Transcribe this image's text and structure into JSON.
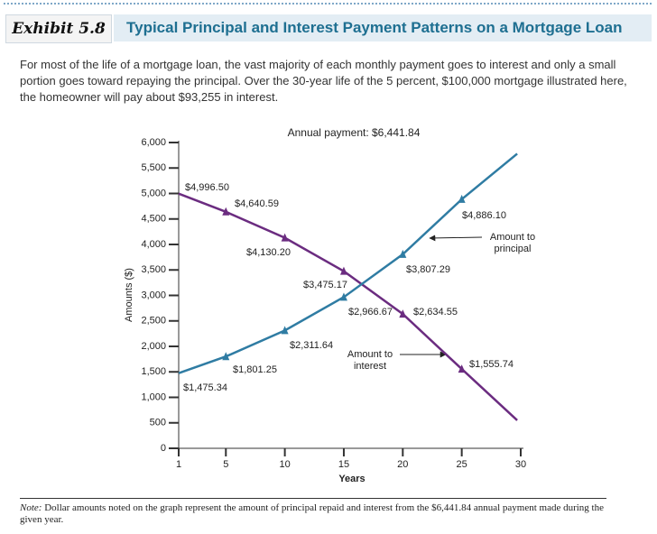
{
  "header": {
    "label": "Exhibit 5.8",
    "title": "Typical Principal and Interest Payment Patterns on a Mortgage Loan"
  },
  "intro": "For most of the life of a mortgage loan, the vast majority of each monthly payment goes to interest and only a small portion goes toward repaying the principal. Over the 30-year life of the 5 percent, $100,000 mortgage illustrated here, the homeowner will pay about $93,255 in interest.",
  "chart_data": {
    "type": "line",
    "annotation": "Annual payment: $6,441.84",
    "xlabel": "Years",
    "ylabel": "Amounts ($)",
    "x": [
      1,
      5,
      10,
      15,
      20,
      25,
      29.7
    ],
    "series": [
      {
        "name": "Amount to interest",
        "color": "#6b2c80",
        "values": [
          4996.5,
          4640.59,
          4130.2,
          3475.17,
          2634.55,
          1555.74,
          550
        ],
        "value_labels": [
          "$4,996.50",
          "$4,640.59",
          "$4,130.20",
          "$3,475.17",
          "$2,634.55",
          "$1,555.74",
          null
        ]
      },
      {
        "name": "Amount to principal",
        "color": "#2f7ca3",
        "values": [
          1475.34,
          1801.25,
          2311.64,
          2966.67,
          3807.29,
          4886.1,
          5780
        ],
        "value_labels": [
          "$1,475.34",
          "$1,801.25",
          "$2,311.64",
          "$2,966.67",
          "$3,807.29",
          "$4,886.10",
          null
        ]
      }
    ],
    "xlim": [
      1,
      30
    ],
    "xticks": [
      1,
      5,
      10,
      15,
      20,
      25,
      30
    ],
    "ylim": [
      0,
      6000
    ],
    "yticks": [
      0,
      500,
      {
        "value": 1000,
        "label": "1,000"
      },
      {
        "value": 1500,
        "label": "1,500"
      },
      {
        "value": 2000,
        "label": "2,000"
      },
      {
        "value": 2500,
        "label": "2,500"
      },
      {
        "value": 3000,
        "label": "3,000"
      },
      {
        "value": 3500,
        "label": "3,500"
      },
      {
        "value": 4000,
        "label": "4,000"
      },
      {
        "value": 4500,
        "label": "4,500"
      },
      {
        "value": 5000,
        "label": "5,000"
      },
      {
        "value": 5500,
        "label": "5,500"
      },
      {
        "value": 6000,
        "label": "6,000"
      }
    ]
  },
  "note": {
    "label": "Note:",
    "text": "Dollar amounts noted on the graph represent the amount of principal repaid and interest from the $6,441.84 annual payment made during the given year."
  }
}
